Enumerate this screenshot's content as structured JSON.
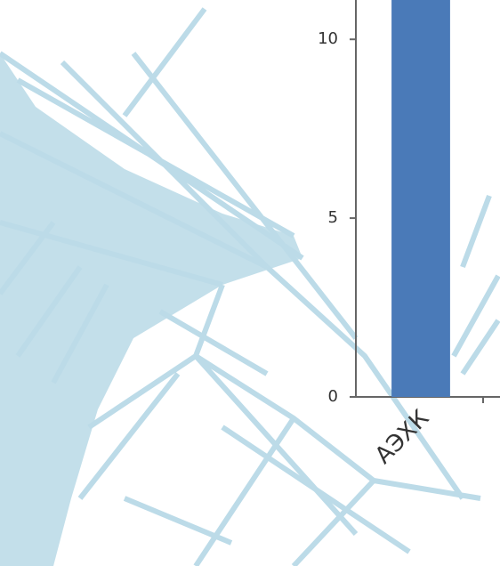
{
  "chart_data": {
    "type": "bar",
    "categories": [
      "АЭХК"
    ],
    "values": [
      12
    ],
    "color": "#4a7ab8",
    "ylim": [
      0,
      11.1
    ],
    "yticks": [
      0,
      5,
      10
    ]
  }
}
